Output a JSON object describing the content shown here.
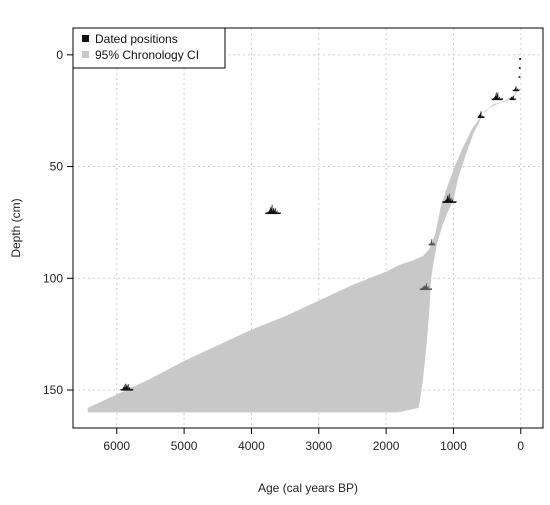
{
  "chart_data": {
    "type": "area",
    "xlabel": "Age (cal years BP)",
    "ylabel": "Depth (cm)",
    "xlim": [
      6650,
      -330
    ],
    "ylim": [
      -12,
      167
    ],
    "x_ticks": [
      6000,
      5000,
      4000,
      3000,
      2000,
      1000,
      0
    ],
    "y_ticks": [
      0,
      50,
      100,
      150
    ],
    "grid": true,
    "legend_position": "top-left",
    "legend": [
      {
        "label": "Dated positions",
        "color": "#111111"
      },
      {
        "label": "95% Chronology CI",
        "color": "#c8c8c8"
      }
    ],
    "colors": {
      "dated": "#111111",
      "ci": "#c8c8c8",
      "grid": "#d0d0d0"
    },
    "ci_band": {
      "young_edge": [
        [
          0,
          3
        ],
        [
          20,
          8
        ],
        [
          40,
          15
        ],
        [
          80,
          18
        ],
        [
          150,
          20
        ],
        [
          250,
          21
        ],
        [
          400,
          22
        ],
        [
          530,
          25
        ],
        [
          600,
          29
        ],
        [
          700,
          35
        ],
        [
          820,
          45
        ],
        [
          930,
          55
        ],
        [
          1000,
          65
        ],
        [
          1080,
          70
        ],
        [
          1160,
          76
        ],
        [
          1240,
          84
        ],
        [
          1300,
          94
        ],
        [
          1330,
          100
        ],
        [
          1360,
          115
        ],
        [
          1400,
          130
        ],
        [
          1450,
          145
        ],
        [
          1500,
          155
        ],
        [
          1520,
          158
        ],
        [
          1820,
          160
        ]
      ],
      "old_edge": [
        [
          0,
          3
        ],
        [
          20,
          8
        ],
        [
          40,
          15
        ],
        [
          100,
          18
        ],
        [
          200,
          20
        ],
        [
          350,
          22
        ],
        [
          480,
          24
        ],
        [
          600,
          28
        ],
        [
          720,
          33
        ],
        [
          870,
          42
        ],
        [
          980,
          50
        ],
        [
          1080,
          58
        ],
        [
          1180,
          67
        ],
        [
          1270,
          80
        ],
        [
          1360,
          87
        ],
        [
          1450,
          90
        ],
        [
          1600,
          92
        ],
        [
          1800,
          94
        ],
        [
          2000,
          97
        ],
        [
          2500,
          103
        ],
        [
          3000,
          110
        ],
        [
          3500,
          117
        ],
        [
          4000,
          123
        ],
        [
          4500,
          130
        ],
        [
          5000,
          137
        ],
        [
          5500,
          145
        ],
        [
          6000,
          152
        ],
        [
          6430,
          158
        ]
      ],
      "bottom_depth": 160
    },
    "dated_positions": [
      {
        "age": 5850,
        "depth": 150,
        "span": 180,
        "height": 9,
        "color": "#111111"
      },
      {
        "age": 3680,
        "depth": 71,
        "span": 220,
        "height": 10,
        "color": "#111111"
      },
      {
        "age": 1060,
        "depth": 66,
        "span": 200,
        "height": 9,
        "color": "#111111"
      },
      {
        "age": 1410,
        "depth": 105,
        "span": 170,
        "height": 8,
        "color": "#555555"
      },
      {
        "age": 1320,
        "depth": 85,
        "span": 90,
        "height": 6,
        "color": "#555555"
      },
      {
        "age": 590,
        "depth": 28,
        "span": 90,
        "height": 7,
        "color": "#111111"
      },
      {
        "age": 350,
        "depth": 20,
        "span": 160,
        "height": 8,
        "color": "#111111"
      },
      {
        "age": 120,
        "depth": 20,
        "span": 80,
        "height": 6,
        "color": "#111111"
      },
      {
        "age": 70,
        "depth": 16,
        "span": 90,
        "height": 5,
        "color": "#111111"
      },
      {
        "age": 10,
        "depth": 2,
        "span": 20,
        "height": 2,
        "color": "#111111"
      },
      {
        "age": 15,
        "depth": 6,
        "span": 20,
        "height": 2,
        "color": "#111111"
      },
      {
        "age": 20,
        "depth": 10,
        "span": 20,
        "height": 2,
        "color": "#111111"
      }
    ]
  }
}
